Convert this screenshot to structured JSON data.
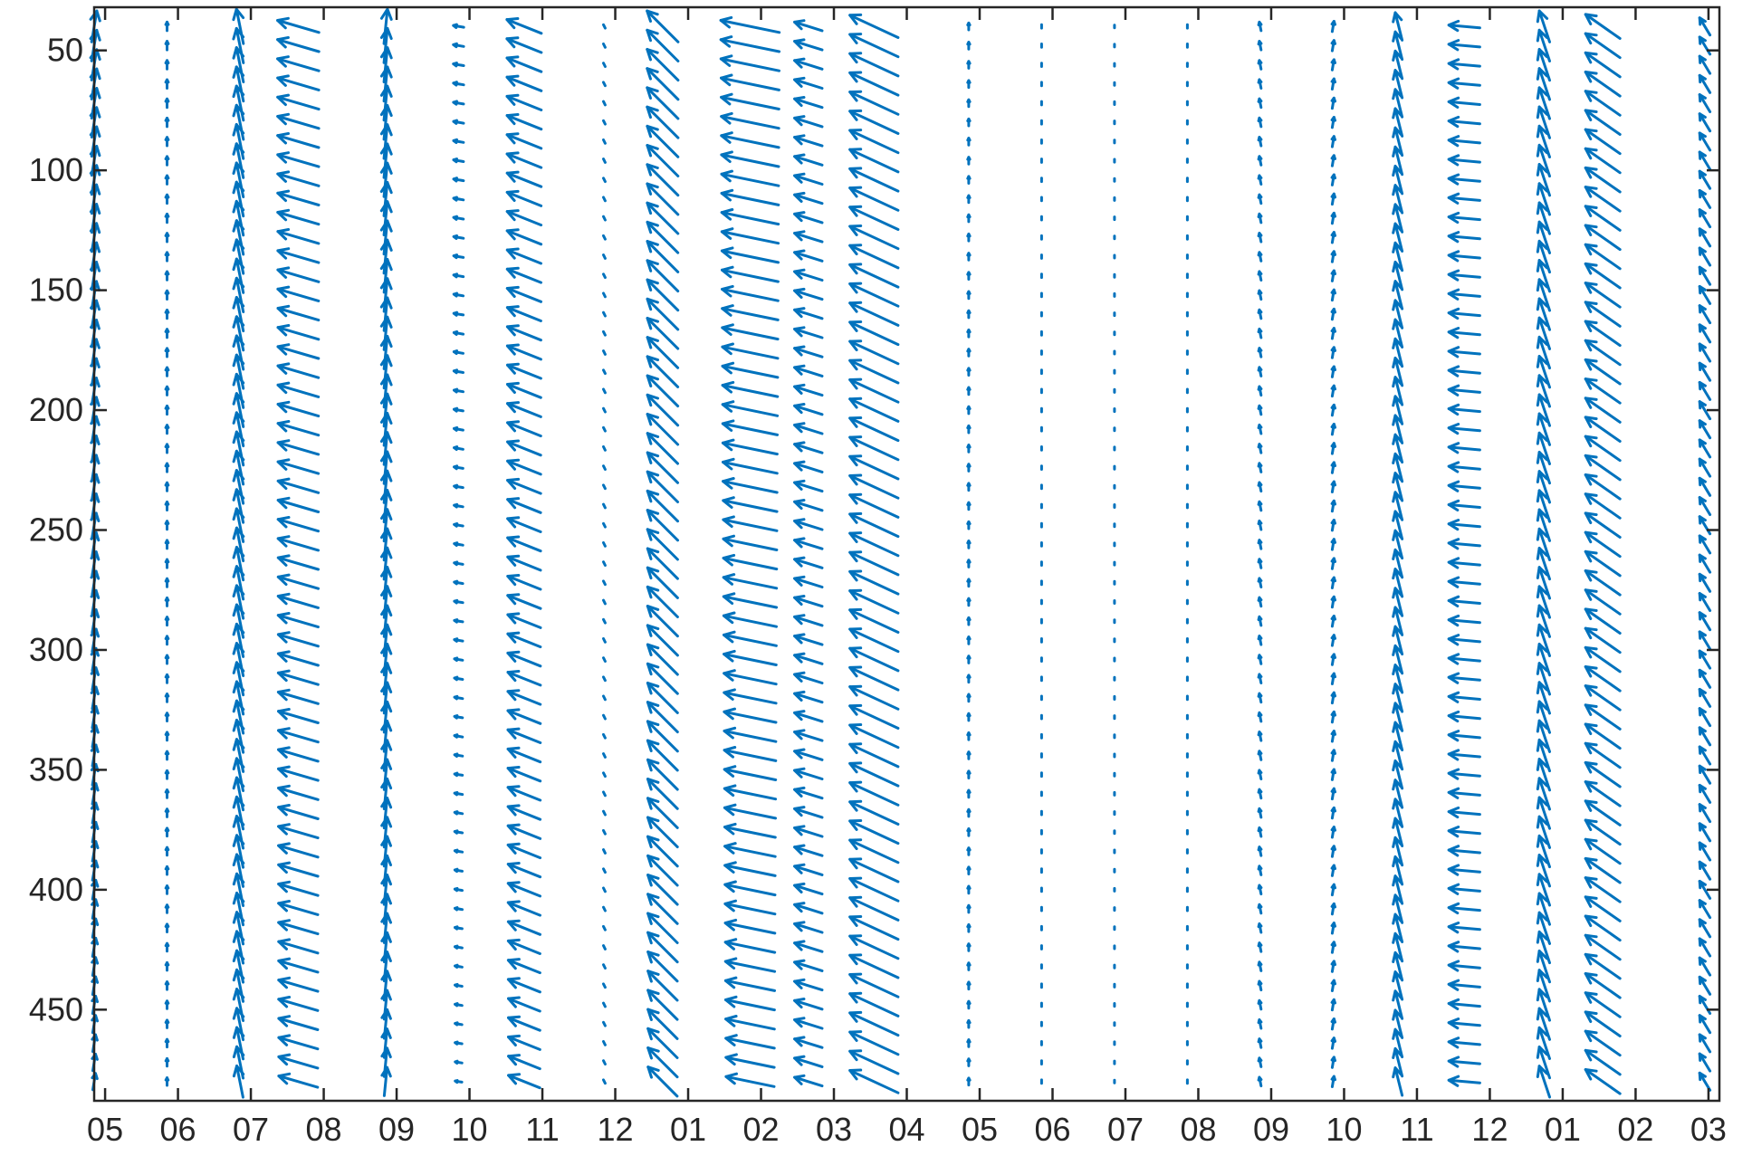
{
  "chart_data": {
    "type": "quiver",
    "title": "",
    "xlabel": "",
    "ylabel": "",
    "color": "#0072BD",
    "grid": false,
    "legend": "none",
    "y_axis": {
      "reversed": true,
      "ylim": [
        32,
        488
      ],
      "ticks": [
        50,
        100,
        150,
        200,
        250,
        300,
        350,
        400,
        450
      ]
    },
    "x_axis": {
      "xlim": [
        0,
        22.3
      ],
      "ticks": [
        0.15,
        1.15,
        2.15,
        3.15,
        4.15,
        5.15,
        6.15,
        7.15,
        8.15,
        9.15,
        10.15,
        11.15,
        12.15,
        13.15,
        14.15,
        15.15,
        16.15,
        17.15,
        18.15,
        19.15,
        20.15,
        21.15,
        22.15
      ],
      "tick_labels": [
        "05",
        "06",
        "07",
        "08",
        "09",
        "10",
        "11",
        "12",
        "01",
        "02",
        "03",
        "04",
        "05",
        "06",
        "07",
        "08",
        "09",
        "10",
        "11",
        "12",
        "01",
        "02",
        "03"
      ]
    },
    "columns": [
      {
        "x": 0.0,
        "u": 0.15,
        "v": 0.9,
        "taper": 0.8
      },
      {
        "x": 1.0,
        "u": 0.0,
        "v": 0.25,
        "taper": 0.2
      },
      {
        "x": 2.0,
        "u": -0.2,
        "v": 1.0,
        "taper": 0.15
      },
      {
        "x": 2.8,
        "u": -1.2,
        "v": 0.35,
        "taper": 0.1
      },
      {
        "x": 4.0,
        "u": 0.1,
        "v": 1.0,
        "taper": 0.3
      },
      {
        "x": 5.0,
        "u": -0.3,
        "v": 0.05,
        "taper": 0.6
      },
      {
        "x": 5.9,
        "u": -1.0,
        "v": 0.4,
        "taper": 0.15
      },
      {
        "x": 7.0,
        "u": -0.05,
        "v": 0.1,
        "taper": 0.0
      },
      {
        "x": 7.8,
        "u": -0.9,
        "v": 0.9,
        "taper": 0.1
      },
      {
        "x": 9.0,
        "u": -1.7,
        "v": 0.35,
        "taper": 0.3
      },
      {
        "x": 9.8,
        "u": -0.8,
        "v": 0.25,
        "taper": 0.0
      },
      {
        "x": 10.7,
        "u": -1.4,
        "v": 0.65,
        "taper": 0.0
      },
      {
        "x": 12.0,
        "u": 0.0,
        "v": 0.2,
        "taper": 0.0
      },
      {
        "x": 13.0,
        "u": 0.0,
        "v": 0.1,
        "taper": 0.0
      },
      {
        "x": 14.0,
        "u": 0.0,
        "v": 0.08,
        "taper": 0.0
      },
      {
        "x": 15.0,
        "u": 0.0,
        "v": 0.1,
        "taper": 0.0
      },
      {
        "x": 16.0,
        "u": -0.05,
        "v": 0.25,
        "taper": 0.0
      },
      {
        "x": 17.0,
        "u": 0.05,
        "v": 0.3,
        "taper": 0.0
      },
      {
        "x": 17.9,
        "u": -0.2,
        "v": 0.8,
        "taper": 0.0
      },
      {
        "x": 18.8,
        "u": -0.9,
        "v": 0.08,
        "taper": 0.0
      },
      {
        "x": 19.9,
        "u": -0.3,
        "v": 0.9,
        "taper": 0.0
      },
      {
        "x": 20.7,
        "u": -1.0,
        "v": 0.7,
        "taper": 0.0
      },
      {
        "x": 22.1,
        "u": -0.3,
        "v": 0.5,
        "taper": 0.0
      }
    ],
    "y_levels": [
      40,
      485,
      8
    ]
  }
}
